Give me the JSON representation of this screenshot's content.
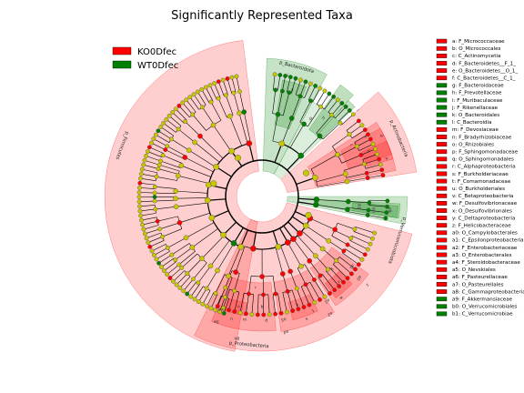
{
  "chart_data": {
    "type": "cladogram",
    "title": "Significantly Represented Taxa",
    "groups": [
      {
        "name": "KO0Dfec",
        "color": "#ff0000"
      },
      {
        "name": "WT0Dfec",
        "color": "#008000"
      }
    ],
    "highlighted_taxa": [
      {
        "key": "a",
        "name": "F_Micrococcaceae",
        "group": "KO0Dfec"
      },
      {
        "key": "b",
        "name": "O_Micrococcales",
        "group": "KO0Dfec"
      },
      {
        "key": "c",
        "name": "C_Actinomycetia",
        "group": "KO0Dfec"
      },
      {
        "key": "d",
        "name": "F_Bacteroidetes__F_1_",
        "group": "KO0Dfec"
      },
      {
        "key": "e",
        "name": "O_Bacteroidetes__O_1_",
        "group": "KO0Dfec"
      },
      {
        "key": "f",
        "name": "C_Bacteroidetes__C_1_",
        "group": "KO0Dfec"
      },
      {
        "key": "g",
        "name": "F_Bacteroidaceae",
        "group": "WT0Dfec"
      },
      {
        "key": "h",
        "name": "F_Prevotellaceae",
        "group": "WT0Dfec"
      },
      {
        "key": "i",
        "name": "F_Muribaculaceae",
        "group": "WT0Dfec"
      },
      {
        "key": "j",
        "name": "F_Rikenellaceae",
        "group": "WT0Dfec"
      },
      {
        "key": "k",
        "name": "O_Bacteroidales",
        "group": "WT0Dfec"
      },
      {
        "key": "l",
        "name": "C_Bacteroidia",
        "group": "WT0Dfec"
      },
      {
        "key": "m",
        "name": "F_Devosiaceae",
        "group": "KO0Dfec"
      },
      {
        "key": "n",
        "name": "F_Bradyrhizobiaceae",
        "group": "KO0Dfec"
      },
      {
        "key": "o",
        "name": "O_Rhizobiales",
        "group": "KO0Dfec"
      },
      {
        "key": "p",
        "name": "F_Sphingomonadaceae",
        "group": "KO0Dfec"
      },
      {
        "key": "q",
        "name": "O_Sphingomonadales",
        "group": "KO0Dfec"
      },
      {
        "key": "r",
        "name": "C_Alphaproteobacteria",
        "group": "KO0Dfec"
      },
      {
        "key": "s",
        "name": "F_Burkholderiaceae",
        "group": "KO0Dfec"
      },
      {
        "key": "t",
        "name": "F_Comamonadaceae",
        "group": "KO0Dfec"
      },
      {
        "key": "u",
        "name": "O_Burkholderiales",
        "group": "KO0Dfec"
      },
      {
        "key": "v",
        "name": "C_Betaproteobacteria",
        "group": "KO0Dfec"
      },
      {
        "key": "w",
        "name": "F_Desulfovibrionaceae",
        "group": "KO0Dfec"
      },
      {
        "key": "x",
        "name": "O_Desulfovibrionales",
        "group": "KO0Dfec"
      },
      {
        "key": "y",
        "name": "C_Deltaproteobacteria",
        "group": "KO0Dfec"
      },
      {
        "key": "z",
        "name": "F_Helicobacteraceae",
        "group": "KO0Dfec"
      },
      {
        "key": "a0",
        "name": "O_Campylobacterales",
        "group": "KO0Dfec"
      },
      {
        "key": "a1",
        "name": "C_Epsilonproteobacteria",
        "group": "KO0Dfec"
      },
      {
        "key": "a2",
        "name": "F_Enterobacteriaceae",
        "group": "KO0Dfec"
      },
      {
        "key": "a3",
        "name": "O_Enterobacterales",
        "group": "KO0Dfec"
      },
      {
        "key": "a4",
        "name": "F_Steroidobacteraceae",
        "group": "KO0Dfec"
      },
      {
        "key": "a5",
        "name": "O_Nevskiales",
        "group": "KO0Dfec"
      },
      {
        "key": "a6",
        "name": "F_Pasteurellaceae",
        "group": "KO0Dfec"
      },
      {
        "key": "a7",
        "name": "O_Pasteurellales",
        "group": "KO0Dfec"
      },
      {
        "key": "a8",
        "name": "C_Gammaproteobacteria",
        "group": "KO0Dfec"
      },
      {
        "key": "a9",
        "name": "F_Akkermansiaceae",
        "group": "WT0Dfec"
      },
      {
        "key": "b0",
        "name": "O_Verrucomicrobiales",
        "group": "WT0Dfec"
      },
      {
        "key": "b1",
        "name": "C_Verrucomicrobiae",
        "group": "WT0Dfec"
      }
    ],
    "phyla": [
      {
        "name": "p_Firmicutes",
        "group": "KO0Dfec"
      },
      {
        "name": "p_Bacteroidota",
        "group": "WT0Dfec"
      },
      {
        "name": "p_Actinobacteria",
        "group": "KO0Dfec"
      },
      {
        "name": "p_Verrucomicrobiota",
        "group": "WT0Dfec"
      },
      {
        "name": "p_Proteobacteria",
        "group": "KO0Dfec"
      }
    ],
    "colors": {
      "ko": "#ff0000",
      "wt": "#008000",
      "neutral_node": "#c8c800"
    }
  }
}
